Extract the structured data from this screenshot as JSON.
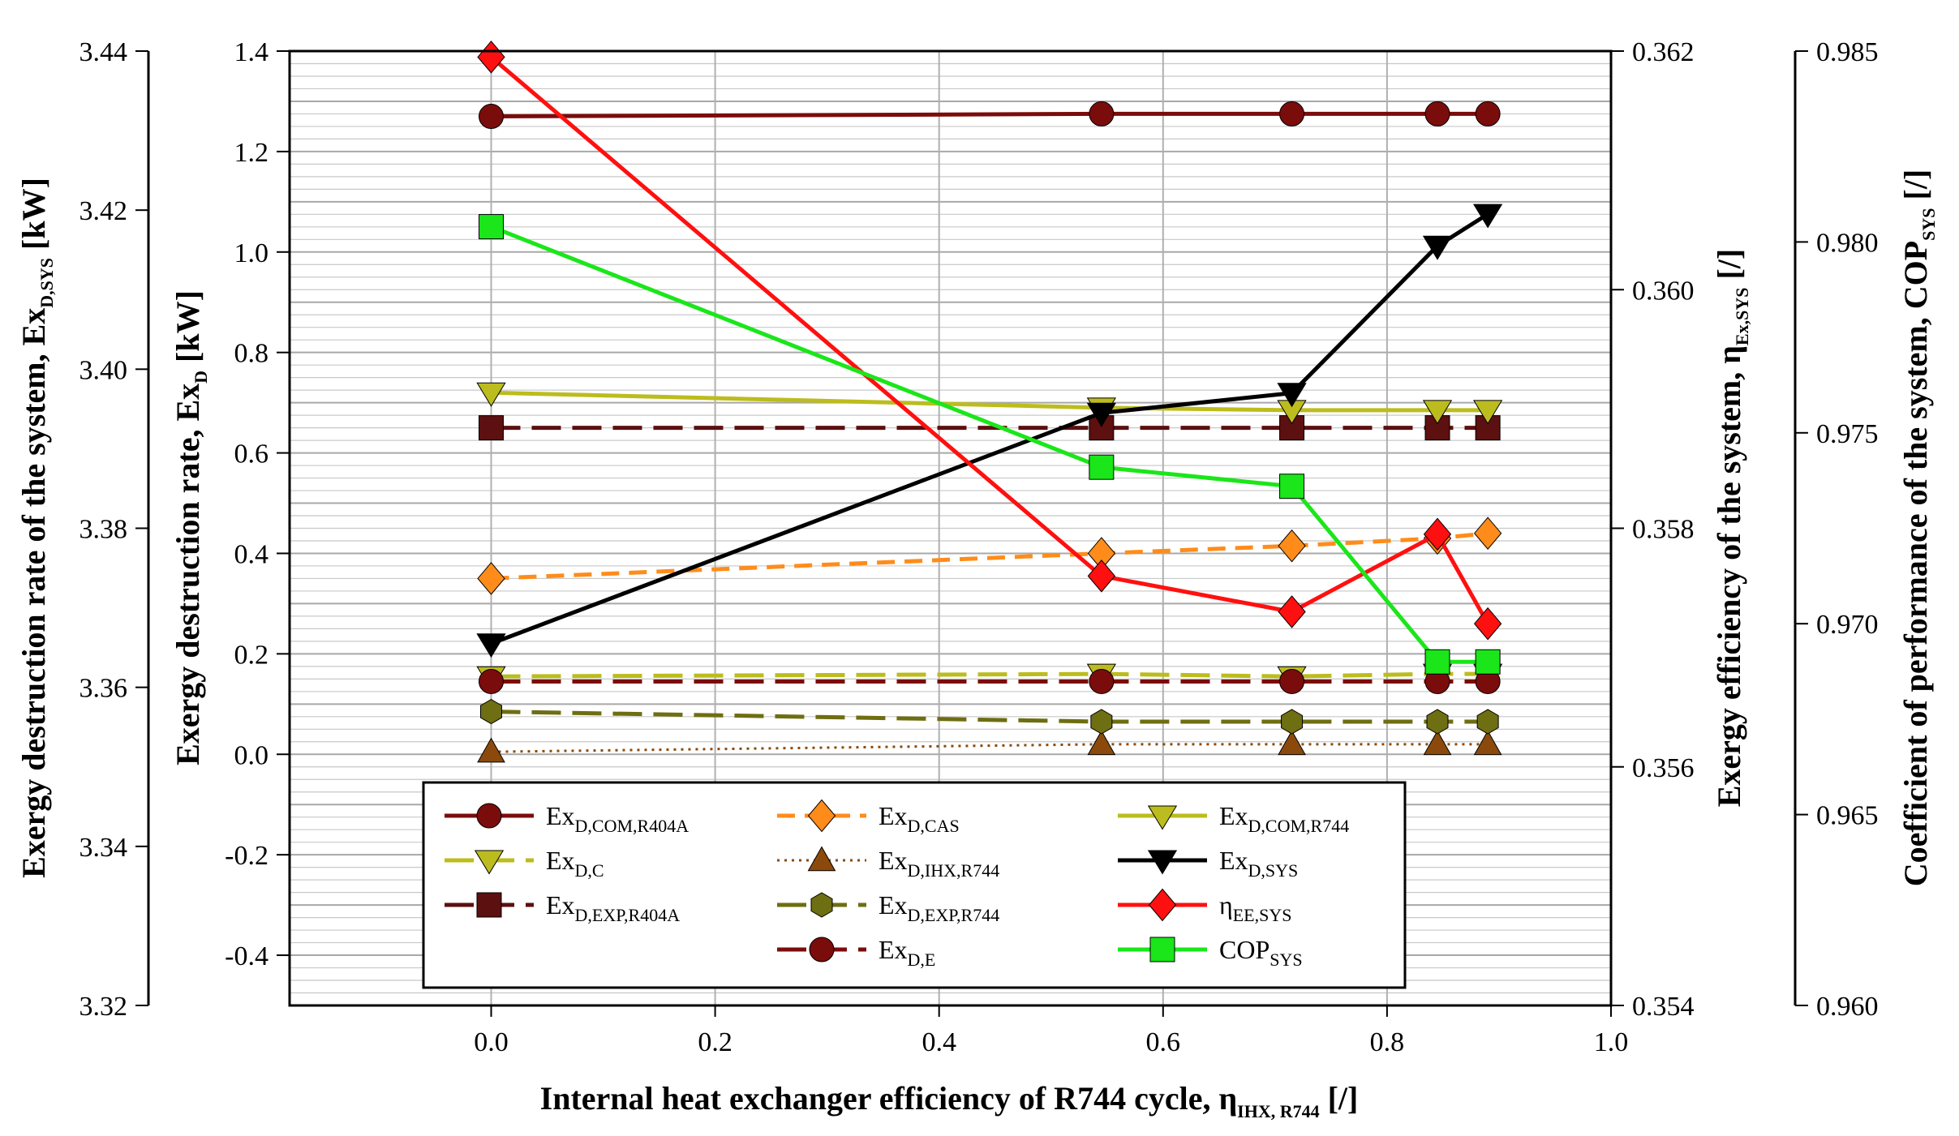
{
  "chart_data": {
    "type": "line",
    "x_axis": {
      "label": "Internal heat exchanger efficiency of R744 cycle, η",
      "label_sub": "IHX, R744",
      "label_suffix": " [/]",
      "range": [
        -0.18,
        1.0
      ],
      "ticks": [
        "0.0",
        "0.2",
        "0.4",
        "0.6",
        "0.8",
        "1.0"
      ]
    },
    "axes": {
      "sys": {
        "label": "Exergy destruction rate of the system, Ex",
        "label_sub": "D,SYS",
        "label_suffix": " [kW]",
        "range": [
          3.32,
          3.44
        ],
        "ticks": [
          "3.32",
          "3.34",
          "3.36",
          "3.38",
          "3.40",
          "3.42",
          "3.44"
        ]
      },
      "exd": {
        "label": "Exergy destruction rate, Ex",
        "label_sub": "D",
        "label_suffix": " [kW]",
        "range": [
          -0.5,
          1.4
        ],
        "ticks": [
          "-0.4",
          "-0.2",
          "0.0",
          "0.2",
          "0.4",
          "0.6",
          "0.8",
          "1.0",
          "1.2",
          "1.4"
        ]
      },
      "eta": {
        "label": "Exergy efficiency of the system, η",
        "label_sub": "Ex,SYS",
        "label_suffix": " [/]",
        "range": [
          0.354,
          0.362
        ],
        "ticks": [
          "0.354",
          "0.356",
          "0.358",
          "0.360",
          "0.362"
        ]
      },
      "cop": {
        "label": "Coefficient of performance of the system, COP",
        "label_sub": "SYS",
        "label_suffix": " [/]",
        "range": [
          0.96,
          0.985
        ],
        "ticks": [
          "0.960",
          "0.965",
          "0.970",
          "0.975",
          "0.980",
          "0.985"
        ]
      }
    },
    "x": [
      0.0,
      0.545,
      0.715,
      0.845,
      0.89
    ],
    "series": [
      {
        "name": "Ex",
        "name_sub": "D,COM,R404A",
        "axis": "exd",
        "color": "#7b0c0c",
        "marker": "circle",
        "dash": "solid",
        "values": [
          1.27,
          1.275,
          1.275,
          1.275,
          1.275
        ]
      },
      {
        "name": "Ex",
        "name_sub": "D,C",
        "axis": "exd",
        "color": "#bcbc1e",
        "marker": "triangle-down",
        "dash": "longdash",
        "values": [
          0.155,
          0.16,
          0.155,
          0.16,
          0.16
        ]
      },
      {
        "name": "Ex",
        "name_sub": "D,EXP,R404A",
        "axis": "exd",
        "color": "#5c1010",
        "marker": "square",
        "dash": "longdash",
        "values": [
          0.65,
          0.65,
          0.65,
          0.65,
          0.65
        ]
      },
      {
        "name": "Ex",
        "name_sub": "D,CAS",
        "axis": "exd",
        "color": "#ff8c1a",
        "marker": "diamond",
        "dash": "dash",
        "values": [
          0.35,
          0.4,
          0.415,
          0.43,
          0.44
        ]
      },
      {
        "name": "Ex",
        "name_sub": "D,IHX,R744",
        "axis": "exd",
        "color": "#8b4a0b",
        "marker": "triangle-up",
        "dash": "dot",
        "values": [
          0.005,
          0.02,
          0.02,
          0.02,
          0.02
        ]
      },
      {
        "name": "Ex",
        "name_sub": "D,EXP,R744",
        "axis": "exd",
        "color": "#6e6e12",
        "marker": "hexagon",
        "dash": "longdash",
        "values": [
          0.085,
          0.065,
          0.065,
          0.065,
          0.065
        ]
      },
      {
        "name": "Ex",
        "name_sub": "D,E",
        "axis": "exd",
        "color": "#7b0c0c",
        "marker": "circle",
        "dash": "longdash",
        "values": [
          0.145,
          0.145,
          0.145,
          0.145,
          0.145
        ]
      },
      {
        "name": "Ex",
        "name_sub": "D,COM,R744",
        "axis": "exd",
        "color": "#bcbc1e",
        "marker": "triangle-down",
        "dash": "solid",
        "values": [
          0.72,
          0.69,
          0.685,
          0.685,
          0.685
        ]
      },
      {
        "name": "Ex",
        "name_sub": "D,SYS",
        "axis": "sys",
        "color": "#000000",
        "marker": "triangle-down",
        "dash": "solid",
        "values": [
          3.3655,
          3.3945,
          3.397,
          3.4155,
          3.4195
        ]
      },
      {
        "name": "η",
        "name_sub": "EE,SYS",
        "axis": "eta",
        "color": "#ff1010",
        "marker": "diamond",
        "dash": "solid",
        "values": [
          0.36195,
          0.3576,
          0.3573,
          0.35795,
          0.3572
        ]
      },
      {
        "name": "COP",
        "name_sub": "SYS",
        "axis": "cop",
        "color": "#1ae61a",
        "marker": "square",
        "dash": "solid",
        "values": [
          0.9804,
          0.9741,
          0.9736,
          0.969,
          0.969
        ]
      }
    ],
    "legend": "bottom-center",
    "grid": true
  }
}
